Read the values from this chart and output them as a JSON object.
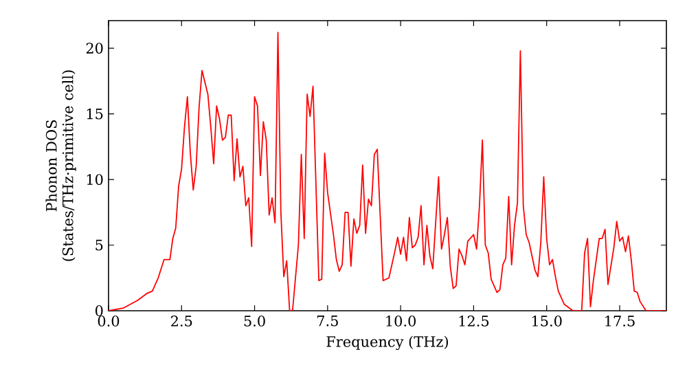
{
  "chart_data": {
    "type": "line",
    "xlabel": "Frequency (THz)",
    "ylabel": "Phonon DOS (States/THz·primitive cell)",
    "xlim": [
      0,
      19.1
    ],
    "ylim": [
      0,
      22.1
    ],
    "xticks": [
      {
        "value": 0,
        "label": "0.0"
      },
      2.5,
      {
        "value": 5,
        "label": "5.0"
      },
      7.5,
      {
        "value": 10,
        "label": "10.0"
      },
      12.5,
      {
        "value": 15,
        "label": "15.0"
      },
      17.5
    ],
    "yticks": [
      0,
      5,
      10,
      15,
      20
    ],
    "marker": "none",
    "line_style": "solid",
    "series": [
      {
        "color": "#ff0000",
        "x": [
          0.0,
          0.5,
          1.0,
          1.3,
          1.5,
          1.7,
          1.9,
          2.1,
          2.2,
          2.3,
          2.4,
          2.5,
          2.6,
          2.7,
          2.8,
          2.9,
          3.0,
          3.1,
          3.2,
          3.4,
          3.5,
          3.6,
          3.7,
          3.8,
          3.9,
          4.0,
          4.1,
          4.2,
          4.3,
          4.4,
          4.5,
          4.6,
          4.7,
          4.8,
          4.9,
          5.0,
          5.1,
          5.2,
          5.3,
          5.4,
          5.5,
          5.6,
          5.7,
          5.8,
          5.9,
          6.0,
          6.1,
          6.2,
          6.3,
          6.5,
          6.6,
          6.7,
          6.8,
          6.9,
          7.0,
          7.2,
          7.3,
          7.4,
          7.5,
          7.7,
          7.8,
          7.9,
          8.0,
          8.1,
          8.2,
          8.3,
          8.4,
          8.5,
          8.6,
          8.7,
          8.8,
          8.9,
          9.0,
          9.1,
          9.2,
          9.4,
          9.6,
          9.8,
          9.9,
          10.0,
          10.1,
          10.2,
          10.3,
          10.4,
          10.5,
          10.6,
          10.7,
          10.8,
          10.9,
          11.0,
          11.1,
          11.3,
          11.4,
          11.5,
          11.6,
          11.7,
          11.8,
          11.9,
          12.0,
          12.1,
          12.2,
          12.3,
          12.5,
          12.6,
          12.7,
          12.8,
          12.9,
          13.0,
          13.1,
          13.3,
          13.4,
          13.5,
          13.6,
          13.7,
          13.8,
          13.9,
          14.0,
          14.1,
          14.2,
          14.3,
          14.4,
          14.6,
          14.7,
          14.8,
          14.9,
          15.0,
          15.1,
          15.2,
          15.3,
          15.4,
          15.6,
          15.9,
          16.2,
          16.3,
          16.4,
          16.5,
          16.6,
          16.8,
          16.9,
          17.0,
          17.1,
          17.3,
          17.4,
          17.5,
          17.6,
          17.7,
          17.8,
          17.9,
          18.0,
          18.1,
          18.2,
          18.4,
          19.1
        ],
        "values": [
          0,
          0.2,
          0.8,
          1.3,
          1.5,
          2.5,
          3.9,
          3.9,
          5.5,
          6.3,
          9.5,
          10.8,
          14,
          16.3,
          12,
          9.2,
          11,
          15.5,
          18.3,
          16.5,
          14,
          11.2,
          15.6,
          14.6,
          13,
          13.2,
          14.9,
          14.9,
          9.9,
          13.1,
          10.2,
          11,
          8,
          8.6,
          4.9,
          16.3,
          15.6,
          10.3,
          14.4,
          13,
          7.3,
          8.6,
          6.7,
          21.2,
          7.5,
          2.6,
          3.8,
          0,
          0,
          5,
          11.9,
          5.5,
          16.5,
          14.8,
          17.1,
          2.3,
          2.4,
          12,
          9,
          5.8,
          3.9,
          3,
          3.5,
          7.5,
          7.5,
          3.4,
          7,
          5.9,
          6.5,
          11.1,
          5.9,
          8.5,
          8,
          11.9,
          12.3,
          2.3,
          2.5,
          4.5,
          5.6,
          4.3,
          5.6,
          3.8,
          7.1,
          4.8,
          5,
          5.6,
          8,
          3.5,
          6.5,
          4.2,
          3.2,
          10.2,
          4.7,
          5.8,
          7.1,
          3.4,
          1.7,
          1.9,
          4.7,
          4.2,
          3.5,
          5.3,
          5.8,
          4.7,
          8,
          13,
          5,
          4.4,
          2.4,
          1.4,
          1.6,
          3.5,
          4,
          8.7,
          3.5,
          6.5,
          8.2,
          19.8,
          8,
          5.8,
          5.2,
          3.1,
          2.6,
          5.2,
          10.2,
          5.5,
          3.5,
          3.9,
          2.6,
          1.5,
          0.5,
          0,
          0,
          4.4,
          5.5,
          0.3,
          2.3,
          5.5,
          5.5,
          6.2,
          2,
          4.8,
          6.8,
          5.3,
          5.6,
          4.5,
          5.7,
          3.8,
          1.5,
          1.4,
          0.7,
          0,
          0
        ]
      }
    ]
  }
}
